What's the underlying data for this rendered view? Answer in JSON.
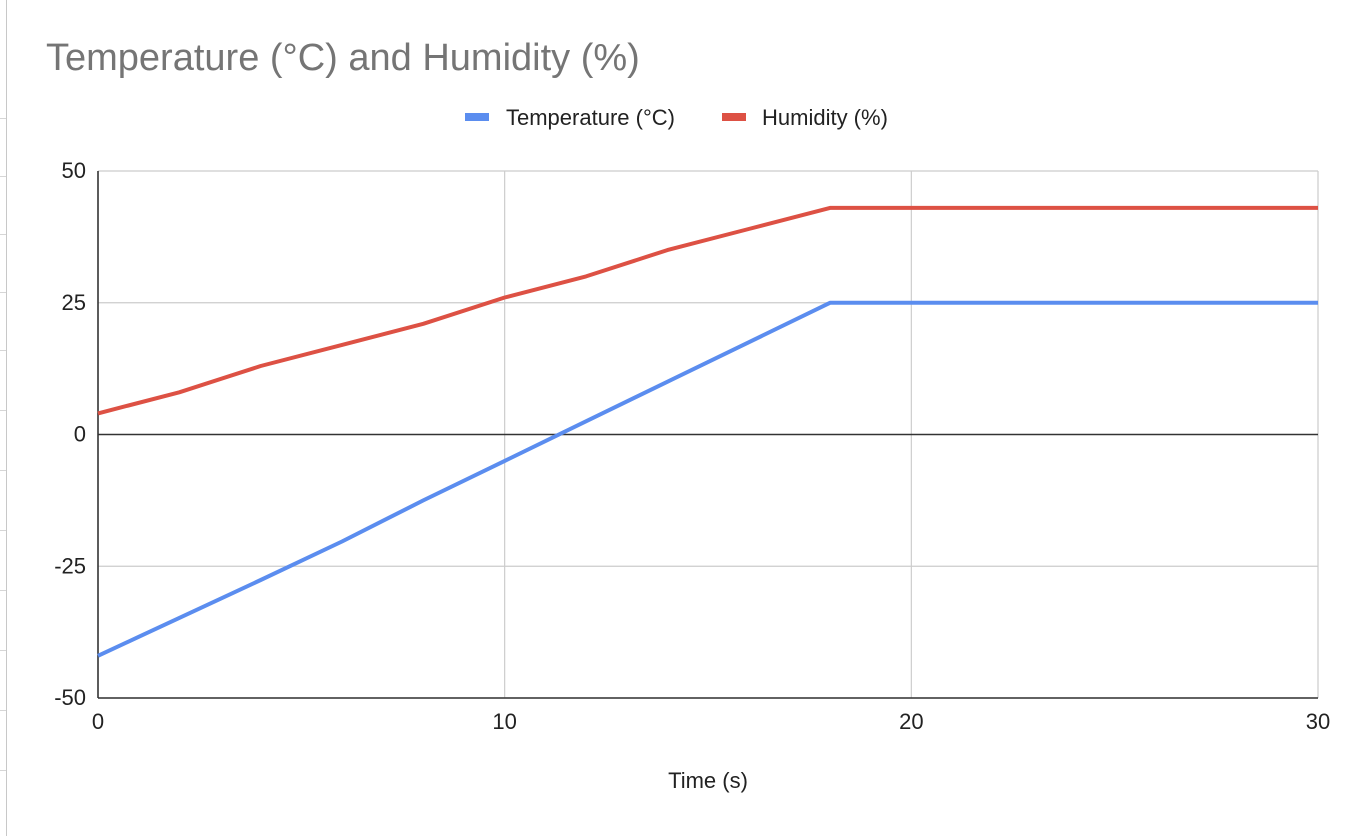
{
  "chart_data": {
    "type": "line",
    "title": "Temperature (°C) and Humidity (%)",
    "xlabel": "Time (s)",
    "ylabel": "",
    "xlim": [
      0,
      30
    ],
    "ylim": [
      -50,
      50
    ],
    "x_ticks": [
      "0",
      "10",
      "20",
      "30"
    ],
    "y_ticks": [
      "50",
      "25",
      "0",
      "-25",
      "-50"
    ],
    "grid": true,
    "legend_position": "top-center",
    "x": [
      0,
      2,
      4,
      6,
      8,
      10,
      12,
      14,
      16,
      18,
      20,
      22,
      24,
      26,
      28,
      30
    ],
    "series": [
      {
        "name": "Temperature (°C)",
        "color": "#5b8def",
        "values": [
          -42,
          -34.8,
          -27.6,
          -20.3,
          -12.5,
          -5,
          2.5,
          10,
          17.5,
          25,
          25,
          25,
          25,
          25,
          25,
          25
        ]
      },
      {
        "name": "Humidity (%)",
        "color": "#dd5144",
        "values": [
          4,
          8,
          13,
          17,
          21,
          26,
          30,
          35,
          39,
          43,
          43,
          43,
          43,
          43,
          43,
          43
        ]
      }
    ]
  }
}
